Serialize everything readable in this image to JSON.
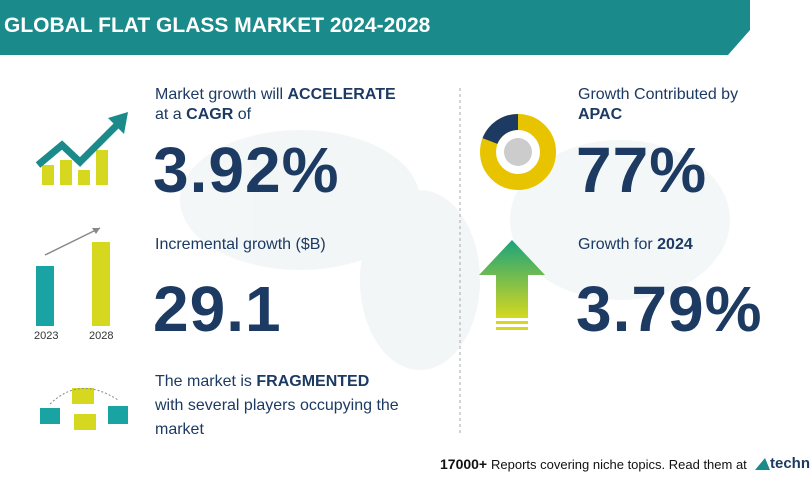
{
  "header": {
    "title": "GLOBAL FLAT GLASS MARKET 2024-2028"
  },
  "cagr": {
    "line1": "Market growth will",
    "emphasis1": "ACCELERATE",
    "line2a": "at a",
    "emphasis2": "CAGR",
    "line2b": "of",
    "value": "3.92%"
  },
  "incremental": {
    "label": "Incremental growth ($B)",
    "value": "29.1",
    "icon_labels": [
      "2023",
      "2028"
    ]
  },
  "fragmented": {
    "line1": "The market is",
    "emphasis": "FRAGMENTED",
    "line2": "with several players occupying the",
    "line3": "market"
  },
  "apac": {
    "line1": "Growth Contributed by",
    "emphasis": "APAC",
    "value": "77%"
  },
  "growth_year": {
    "label": "Growth for",
    "year": "2024",
    "value": "3.79%"
  },
  "footer": {
    "count": "17000+",
    "text": "Reports covering niche topics. Read them at",
    "brand": "technav"
  }
}
